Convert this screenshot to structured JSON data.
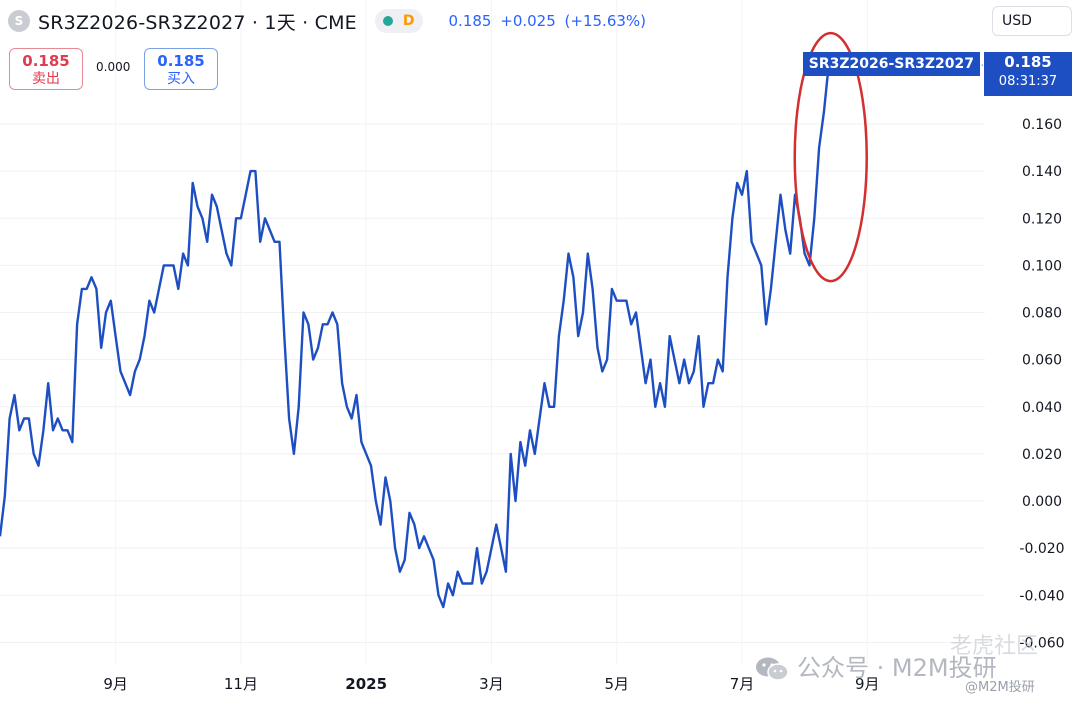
{
  "header": {
    "symbol_icon": "S",
    "title": "SR3Z2026-SR3Z2027 · 1天 · CME",
    "status_dot_color": "#26a69a",
    "delay_letter": "D",
    "last_price": "0.185",
    "change": "+0.025",
    "change_pct": "(+15.63%)"
  },
  "trade": {
    "sell_price": "0.185",
    "sell_label": "卖出",
    "spread": "0.000",
    "buy_price": "0.185",
    "buy_label": "买入"
  },
  "currency_button": "USD",
  "price_label": {
    "symbol": "SR3Z2026-SR3Z2027",
    "price": "0.185",
    "countdown": "08:31:37"
  },
  "watermark": {
    "main": "公众号 · M2M投研",
    "sub": "@M2M投研",
    "faint": "老虎社区"
  },
  "chart_data": {
    "type": "line",
    "series_color": "#1e4fc2",
    "annotation": {
      "type": "ellipse",
      "color": "#d32f2f",
      "target": "last points"
    },
    "y_ticks": [
      "0.160",
      "0.140",
      "0.120",
      "0.100",
      "0.080",
      "0.060",
      "0.040",
      "0.020",
      "0.000",
      "-0.020",
      "-0.040",
      "-0.060"
    ],
    "x_ticks": [
      "9月",
      "11月",
      "2025",
      "3月",
      "5月",
      "7月",
      "9月"
    ],
    "ylim": [
      -0.06,
      0.19
    ],
    "x_index_range": [
      0,
      220
    ],
    "x_tick_index": [
      24,
      50,
      76,
      102,
      128,
      154,
      180
    ],
    "values": [
      -0.015,
      0.002,
      0.035,
      0.045,
      0.03,
      0.035,
      0.035,
      0.02,
      0.015,
      0.03,
      0.05,
      0.03,
      0.035,
      0.03,
      0.03,
      0.025,
      0.075,
      0.09,
      0.09,
      0.095,
      0.09,
      0.065,
      0.08,
      0.085,
      0.07,
      0.055,
      0.05,
      0.045,
      0.055,
      0.06,
      0.07,
      0.085,
      0.08,
      0.09,
      0.1,
      0.1,
      0.1,
      0.09,
      0.105,
      0.1,
      0.135,
      0.125,
      0.12,
      0.11,
      0.13,
      0.125,
      0.115,
      0.105,
      0.1,
      0.12,
      0.12,
      0.13,
      0.14,
      0.14,
      0.11,
      0.12,
      0.115,
      0.11,
      0.11,
      0.07,
      0.035,
      0.02,
      0.04,
      0.08,
      0.075,
      0.06,
      0.065,
      0.075,
      0.075,
      0.08,
      0.075,
      0.05,
      0.04,
      0.035,
      0.045,
      0.025,
      0.02,
      0.015,
      0.0,
      -0.01,
      0.01,
      0.0,
      -0.02,
      -0.03,
      -0.025,
      -0.005,
      -0.01,
      -0.02,
      -0.015,
      -0.02,
      -0.025,
      -0.04,
      -0.045,
      -0.035,
      -0.04,
      -0.03,
      -0.035,
      -0.035,
      -0.035,
      -0.02,
      -0.035,
      -0.03,
      -0.02,
      -0.01,
      -0.02,
      -0.03,
      0.02,
      0.0,
      0.025,
      0.015,
      0.03,
      0.02,
      0.035,
      0.05,
      0.04,
      0.04,
      0.07,
      0.085,
      0.105,
      0.095,
      0.07,
      0.08,
      0.105,
      0.09,
      0.065,
      0.055,
      0.06,
      0.09,
      0.085,
      0.085,
      0.085,
      0.075,
      0.08,
      0.065,
      0.05,
      0.06,
      0.04,
      0.05,
      0.04,
      0.07,
      0.06,
      0.05,
      0.06,
      0.05,
      0.055,
      0.07,
      0.04,
      0.05,
      0.05,
      0.06,
      0.055,
      0.095,
      0.12,
      0.135,
      0.13,
      0.14,
      0.11,
      0.105,
      0.1,
      0.075,
      0.09,
      0.11,
      0.13,
      0.115,
      0.105,
      0.13,
      0.12,
      0.105,
      0.1,
      0.12,
      0.15,
      0.165,
      0.185
    ]
  }
}
